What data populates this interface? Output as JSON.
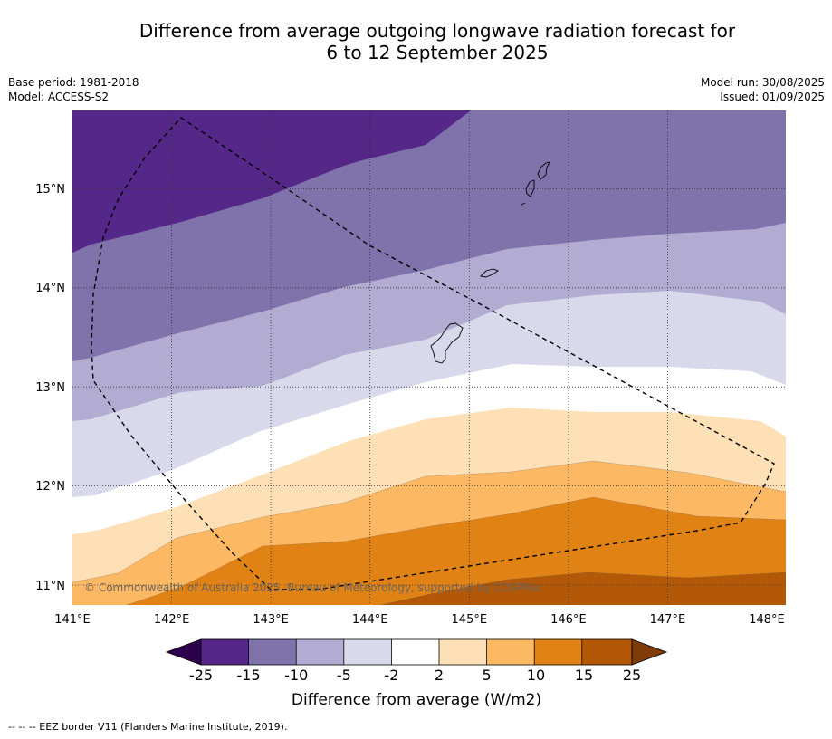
{
  "title_line1": "Difference from average outgoing longwave radiation forecast for",
  "title_line2": "6 to 12 September 2025",
  "meta": {
    "base_period": "Base period: 1981-2018",
    "model": "Model: ACCESS-S2",
    "model_run": "Model run: 30/08/2025",
    "issued": "Issued: 01/09/2025"
  },
  "map": {
    "lon_ticks": [
      "141°E",
      "142°E",
      "143°E",
      "144°E",
      "145°E",
      "146°E",
      "147°E",
      "148°E"
    ],
    "lat_ticks": [
      "15°N",
      "14°N",
      "13°N",
      "12°N",
      "11°N"
    ],
    "copyright": "© Commonwealth of Australia 2025, Bureau of Meteorology, supported by COSPPac"
  },
  "colorbar": {
    "title": "Difference from average (W/m2)",
    "labels": [
      "-25",
      "-15",
      "-10",
      "-5",
      "-2",
      "2",
      "5",
      "10",
      "15",
      "25"
    ],
    "colors": {
      "below_-25": "#2d004b",
      "-25_to_-15": "#542788",
      "-15_to_-10": "#8073ac",
      "-10_to_-5": "#b2abd2",
      "-5_to_-2": "#d8daeb",
      "-2_to_2": "#ffffff",
      "2_to_5": "#fee0b6",
      "5_to_10": "#fdb863",
      "10_to_15": "#e08214",
      "15_to_25": "#b35806",
      "above_25": "#7f3b08"
    }
  },
  "footnote": "--  --  -- EEZ border V11 (Flanders Marine Institute, 2019)."
}
